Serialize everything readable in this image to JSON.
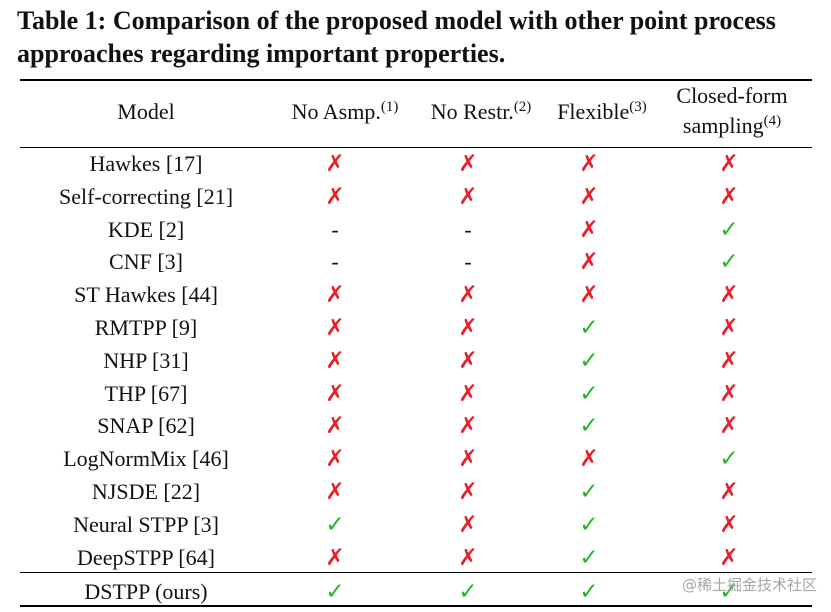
{
  "caption": {
    "text": "Table 1: Comparison of the proposed model with other point process approaches regarding important properties."
  },
  "header": {
    "model": "Model",
    "col1": {
      "label": "No Asmp.",
      "sup": "(1)"
    },
    "col2": {
      "label": "No Restr.",
      "sup": "(2)"
    },
    "col3": {
      "label": "Flexible",
      "sup": "(3)"
    },
    "col4": {
      "label_line1": "Closed-form",
      "label_line2": "sampling",
      "sup": "(4)"
    }
  },
  "symbols": {
    "cross": "✗",
    "check": "✓",
    "dash": "-"
  },
  "colors": {
    "cross": "#e8202a",
    "check": "#22b722"
  },
  "rows": [
    {
      "model": "Hawkes [17]",
      "values": [
        "cross",
        "cross",
        "cross",
        "cross"
      ]
    },
    {
      "model": "Self-correcting [21]",
      "values": [
        "cross",
        "cross",
        "cross",
        "cross"
      ]
    },
    {
      "model": "KDE [2]",
      "values": [
        "dash",
        "dash",
        "cross",
        "check"
      ]
    },
    {
      "model": "CNF [3]",
      "values": [
        "dash",
        "dash",
        "cross",
        "check"
      ]
    },
    {
      "model": "ST Hawkes [44]",
      "values": [
        "cross",
        "cross",
        "cross",
        "cross"
      ]
    },
    {
      "model": "RMTPP [9]",
      "values": [
        "cross",
        "cross",
        "check",
        "cross"
      ]
    },
    {
      "model": "NHP [31]",
      "values": [
        "cross",
        "cross",
        "check",
        "cross"
      ]
    },
    {
      "model": "THP [67]",
      "values": [
        "cross",
        "cross",
        "check",
        "cross"
      ]
    },
    {
      "model": "SNAP [62]",
      "values": [
        "cross",
        "cross",
        "check",
        "cross"
      ]
    },
    {
      "model": "LogNormMix [46]",
      "values": [
        "cross",
        "cross",
        "cross",
        "check"
      ]
    },
    {
      "model": "NJSDE [22]",
      "values": [
        "cross",
        "cross",
        "check",
        "cross"
      ]
    },
    {
      "model": "Neural STPP [3]",
      "values": [
        "check",
        "cross",
        "check",
        "cross"
      ]
    },
    {
      "model": "DeepSTPP [64]",
      "values": [
        "cross",
        "cross",
        "check",
        "cross"
      ]
    }
  ],
  "final_row": {
    "model": "DSTPP (ours)",
    "values": [
      "check",
      "check",
      "check",
      "check"
    ]
  },
  "watermark": "@稀土掘金技术社区"
}
